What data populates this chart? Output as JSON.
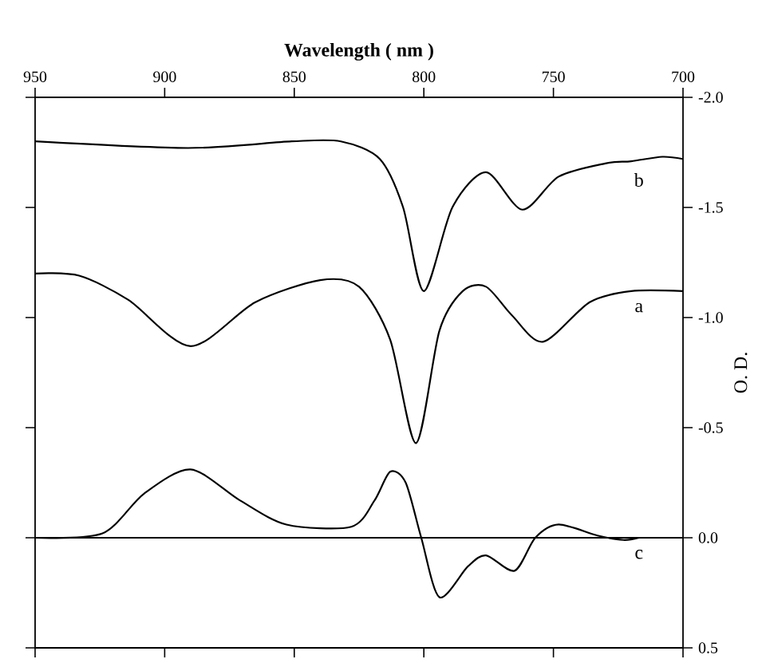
{
  "chart_data": {
    "type": "line",
    "xlabel": "Wavelength ( nm )",
    "ylabel": "O. D.",
    "xlim": [
      950,
      700
    ],
    "ylim": [
      0.5,
      -2.0
    ],
    "xticks": [
      700,
      750,
      800,
      850,
      900,
      950
    ],
    "yticks": [
      {
        "value": -2.0,
        "label": "-2.0"
      },
      {
        "value": -1.5,
        "label": "-1.5"
      },
      {
        "value": -1.0,
        "label": "-1.0"
      },
      {
        "value": -0.5,
        "label": "-0.5"
      },
      {
        "value": 0.0,
        "label": "0.0"
      },
      {
        "value": 0.5,
        "label": "0.5"
      }
    ],
    "grid": false,
    "legend": "right",
    "marker": "none",
    "line_style": "solid",
    "series": [
      {
        "name": "b",
        "color": "#000000",
        "x": [
          700,
          708,
          720,
          730,
          748,
          762,
          776,
          789,
          800,
          808,
          817,
          832,
          851,
          891,
          950
        ],
        "values": [
          -1.72,
          -1.73,
          -1.71,
          -1.7,
          -1.64,
          -1.49,
          -1.66,
          -1.5,
          -1.12,
          -1.5,
          -1.72,
          -1.8,
          -1.8,
          -1.77,
          -1.8
        ]
      },
      {
        "name": "a",
        "color": "#000000",
        "x": [
          700,
          720,
          736,
          754,
          766,
          776,
          785,
          794,
          803,
          813,
          825,
          840,
          865,
          890,
          914,
          933,
          950
        ],
        "values": [
          -1.12,
          -1.12,
          -1.07,
          -0.89,
          -1.01,
          -1.14,
          -1.12,
          -0.94,
          -0.43,
          -0.9,
          -1.14,
          -1.17,
          -1.07,
          -0.87,
          -1.08,
          -1.19,
          -1.2
        ]
      },
      {
        "name": "c",
        "color": "#000000",
        "x": [
          717,
          723,
          733,
          748,
          757,
          765,
          776,
          783,
          794,
          801,
          807,
          813,
          819,
          828,
          853,
          871,
          890,
          908,
          924,
          950
        ],
        "values": [
          0.0,
          0.01,
          -0.01,
          -0.06,
          0.0,
          0.15,
          0.08,
          0.13,
          0.27,
          0.0,
          -0.25,
          -0.3,
          -0.17,
          -0.05,
          -0.06,
          -0.17,
          -0.31,
          -0.2,
          -0.02,
          0.0
        ]
      }
    ],
    "ref_lines": [
      {
        "axis": "y",
        "value": 0.0
      }
    ]
  }
}
